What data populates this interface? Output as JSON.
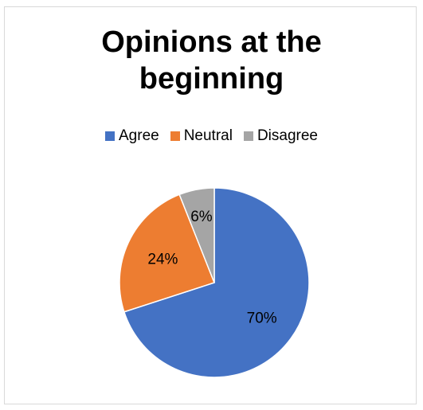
{
  "chart_data": {
    "type": "pie",
    "title": "Opinions at the beginning",
    "title_lines": [
      "Opinions at the",
      "beginning"
    ],
    "categories": [
      "Agree",
      "Neutral",
      "Disagree"
    ],
    "values": [
      70,
      24,
      6
    ],
    "labels": [
      "70%",
      "24%",
      "6%"
    ],
    "colors": [
      "#4472c4",
      "#ed7d31",
      "#a5a5a5"
    ],
    "legend_position": "top"
  }
}
